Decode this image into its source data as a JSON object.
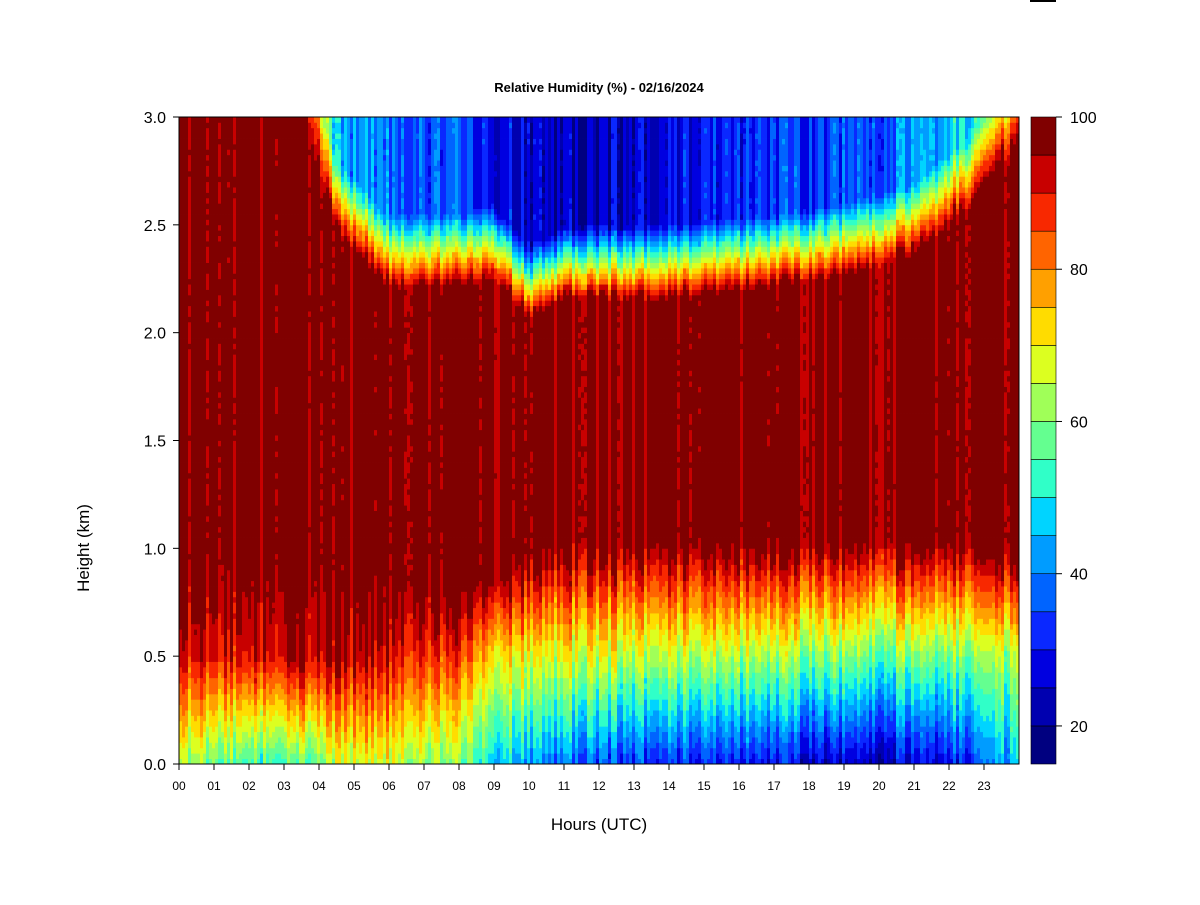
{
  "chart_data": {
    "type": "heatmap",
    "title": "Relative Humidity (%) - 02/16/2024",
    "xlabel": "Hours (UTC)",
    "ylabel": "Height (km)",
    "xlim": [
      0,
      24
    ],
    "ylim": [
      0.0,
      3.0
    ],
    "x_tick_labels": [
      "00",
      "01",
      "02",
      "03",
      "04",
      "05",
      "06",
      "07",
      "08",
      "09",
      "10",
      "11",
      "12",
      "13",
      "14",
      "15",
      "16",
      "17",
      "18",
      "19",
      "20",
      "21",
      "22",
      "23"
    ],
    "y_tick_labels": [
      "0.0",
      "0.5",
      "1.0",
      "1.5",
      "2.0",
      "2.5",
      "3.0"
    ],
    "y_ticks": [
      0.0,
      0.5,
      1.0,
      1.5,
      2.0,
      2.5,
      3.0
    ],
    "colorbar": {
      "range": [
        15,
        100
      ],
      "step": 5,
      "tick_values": [
        20,
        40,
        60,
        80,
        100
      ],
      "tick_labels": [
        "20",
        "40",
        "60",
        "80",
        "100"
      ],
      "colors": [
        "#000080",
        "#0000b0",
        "#0000e0",
        "#0a28ff",
        "#0064ff",
        "#009cff",
        "#00d4ff",
        "#30ffc8",
        "#64ff90",
        "#a0ff58",
        "#dcff20",
        "#ffdc00",
        "#ffa000",
        "#ff6400",
        "#f82800",
        "#c80000",
        "#800000"
      ]
    },
    "profiles": {
      "hours": [
        0,
        2,
        3.5,
        4.5,
        6,
        8,
        9,
        10,
        11,
        14,
        17,
        19,
        21,
        22.5,
        24
      ],
      "top_of_saturated_layer_km": [
        3.0,
        3.0,
        3.0,
        2.45,
        2.2,
        2.2,
        2.25,
        2.05,
        2.15,
        2.15,
        2.2,
        2.25,
        2.35,
        2.55,
        2.85
      ],
      "bottom_of_saturated_layer_km": [
        0.95,
        0.95,
        0.95,
        0.9,
        0.85,
        0.85,
        0.85,
        1.0,
        1.05,
        1.05,
        1.05,
        1.05,
        1.05,
        1.05,
        1.0
      ],
      "surface_rh_percent": [
        62,
        55,
        55,
        65,
        67,
        58,
        50,
        42,
        38,
        32,
        28,
        25,
        25,
        32,
        45
      ],
      "rh_at_0_5km_percent": [
        90,
        92,
        95,
        95,
        92,
        85,
        75,
        68,
        68,
        65,
        62,
        60,
        58,
        60,
        62
      ],
      "upper_air_rh_percent": [
        100,
        100,
        100,
        45,
        38,
        35,
        30,
        25,
        22,
        28,
        32,
        35,
        40,
        50,
        62
      ]
    }
  }
}
